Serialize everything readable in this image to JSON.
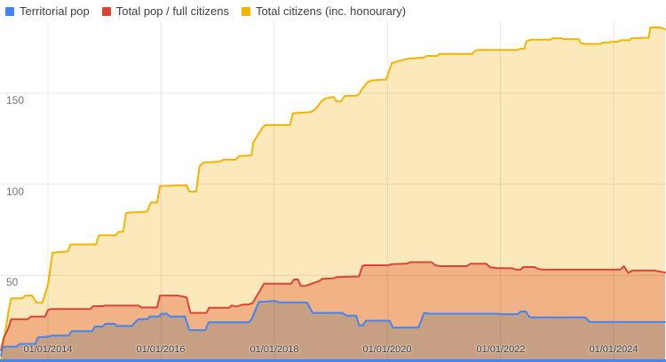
{
  "legend": {
    "items": [
      {
        "label": "Territorial pop",
        "color": "#4285F4"
      },
      {
        "label": "Total pop / full citizens",
        "color": "#DB4437"
      },
      {
        "label": "Total citizens (inc. honourary)",
        "color": "#F4B400"
      }
    ]
  },
  "footer": {
    "accent_color": "#4285F4"
  },
  "chart_data": {
    "type": "area",
    "title": "",
    "xlabel": "",
    "ylabel": "",
    "grid": true,
    "legend_position": "top",
    "x_axis": {
      "range_years": [
        2013.17,
        2024.91
      ],
      "ticks": [
        {
          "label": "01/01/2014",
          "year": 2014
        },
        {
          "label": "01/01/2016",
          "year": 2016
        },
        {
          "label": "01/01/2018",
          "year": 2018
        },
        {
          "label": "01/01/2020",
          "year": 2020
        },
        {
          "label": "01/01/2022",
          "year": 2022
        },
        {
          "label": "01/01/2024",
          "year": 2024
        }
      ]
    },
    "y_axis": {
      "range": [
        0,
        200
      ],
      "ticks": [
        {
          "label": "50",
          "value": 50
        },
        {
          "label": "100",
          "value": 100
        },
        {
          "label": "150",
          "value": 150
        }
      ]
    },
    "series": [
      {
        "name": "Territorial pop",
        "line_color": "#4285F4",
        "fill_color": "#C7A083",
        "points": [
          [
            2013.17,
            6
          ],
          [
            2013.2,
            10.5
          ],
          [
            2013.24,
            11
          ],
          [
            2013.45,
            11
          ],
          [
            2013.5,
            12.5
          ],
          [
            2013.78,
            12.5
          ],
          [
            2013.82,
            16
          ],
          [
            2014.02,
            16.5
          ],
          [
            2014.06,
            17
          ],
          [
            2014.36,
            17
          ],
          [
            2014.42,
            19.5
          ],
          [
            2014.78,
            19.5
          ],
          [
            2014.83,
            22
          ],
          [
            2014.97,
            22
          ],
          [
            2015.01,
            23.5
          ],
          [
            2015.18,
            23.5
          ],
          [
            2015.22,
            22.3
          ],
          [
            2015.48,
            22.3
          ],
          [
            2015.55,
            24.5
          ],
          [
            2015.6,
            26
          ],
          [
            2015.76,
            26
          ],
          [
            2015.8,
            27.5
          ],
          [
            2015.96,
            27.5
          ],
          [
            2016.0,
            29
          ],
          [
            2016.1,
            29
          ],
          [
            2016.16,
            27.5
          ],
          [
            2016.42,
            27.5
          ],
          [
            2016.5,
            20
          ],
          [
            2016.78,
            20
          ],
          [
            2016.84,
            24.3
          ],
          [
            2017.55,
            24.3
          ],
          [
            2017.6,
            26
          ],
          [
            2017.73,
            35.5
          ],
          [
            2018.02,
            36
          ],
          [
            2018.1,
            35.2
          ],
          [
            2018.58,
            35.2
          ],
          [
            2018.68,
            29.5
          ],
          [
            2019.2,
            29.5
          ],
          [
            2019.28,
            28
          ],
          [
            2019.45,
            28
          ],
          [
            2019.5,
            22.7
          ],
          [
            2019.57,
            22.7
          ],
          [
            2019.62,
            25.2
          ],
          [
            2020.04,
            25.2
          ],
          [
            2020.1,
            21.4
          ],
          [
            2020.55,
            21.4
          ],
          [
            2020.65,
            29.5
          ],
          [
            2020.75,
            29
          ],
          [
            2021.95,
            29
          ],
          [
            2022.0,
            28.8
          ],
          [
            2022.3,
            28.8
          ],
          [
            2022.36,
            30.3
          ],
          [
            2022.45,
            30.3
          ],
          [
            2022.5,
            27.5
          ],
          [
            2022.55,
            27
          ],
          [
            2023.5,
            27
          ],
          [
            2023.58,
            24.5
          ],
          [
            2024.91,
            24.5
          ]
        ]
      },
      {
        "name": "Total pop / full citizens",
        "line_color": "#DB4437",
        "fill_color": "#F1B285",
        "points": [
          [
            2013.17,
            9
          ],
          [
            2013.22,
            16
          ],
          [
            2013.3,
            21
          ],
          [
            2013.35,
            26
          ],
          [
            2013.64,
            26
          ],
          [
            2013.7,
            27.5
          ],
          [
            2013.95,
            27.5
          ],
          [
            2014.0,
            31
          ],
          [
            2014.05,
            31.6
          ],
          [
            2014.75,
            31.6
          ],
          [
            2014.8,
            33.2
          ],
          [
            2014.97,
            33.2
          ],
          [
            2015.0,
            33.5
          ],
          [
            2015.6,
            33.5
          ],
          [
            2015.65,
            32.5
          ],
          [
            2015.93,
            32.5
          ],
          [
            2015.98,
            39
          ],
          [
            2016.3,
            39
          ],
          [
            2016.45,
            38
          ],
          [
            2016.52,
            29.5
          ],
          [
            2016.8,
            29.5
          ],
          [
            2016.85,
            32.3
          ],
          [
            2017.2,
            32.3
          ],
          [
            2017.25,
            33.6
          ],
          [
            2017.32,
            32.9
          ],
          [
            2017.45,
            34.1
          ],
          [
            2017.55,
            34.1
          ],
          [
            2017.62,
            35
          ],
          [
            2017.82,
            45.5
          ],
          [
            2018.3,
            45.5
          ],
          [
            2018.35,
            47.8
          ],
          [
            2018.42,
            47.8
          ],
          [
            2018.47,
            44.3
          ],
          [
            2018.55,
            44.3
          ],
          [
            2018.8,
            47
          ],
          [
            2018.85,
            48.2
          ],
          [
            2019.05,
            48.5
          ],
          [
            2019.1,
            49.1
          ],
          [
            2019.5,
            49.5
          ],
          [
            2019.56,
            55.3
          ],
          [
            2019.6,
            55.6
          ],
          [
            2020.02,
            55.6
          ],
          [
            2020.08,
            56.2
          ],
          [
            2020.35,
            56.5
          ],
          [
            2020.4,
            57.3
          ],
          [
            2020.78,
            57.3
          ],
          [
            2020.85,
            55.6
          ],
          [
            2020.93,
            55.1
          ],
          [
            2021.4,
            55.1
          ],
          [
            2021.47,
            56.4
          ],
          [
            2021.75,
            56.4
          ],
          [
            2021.82,
            54.5
          ],
          [
            2021.95,
            54
          ],
          [
            2022.2,
            54
          ],
          [
            2022.28,
            53.2
          ],
          [
            2022.36,
            53.2
          ],
          [
            2022.4,
            54.6
          ],
          [
            2022.6,
            54.6
          ],
          [
            2022.68,
            53.5
          ],
          [
            2022.75,
            53.2
          ],
          [
            2024.12,
            53.2
          ],
          [
            2024.18,
            55.1
          ],
          [
            2024.26,
            51.4
          ],
          [
            2024.33,
            52.7
          ],
          [
            2024.72,
            52.7
          ],
          [
            2024.91,
            51.6
          ]
        ]
      },
      {
        "name": "Total citizens (inc. honourary)",
        "line_color": "#F4B400",
        "fill_color": "#FBE9BC",
        "points": [
          [
            2013.17,
            3
          ],
          [
            2013.22,
            14
          ],
          [
            2013.3,
            30
          ],
          [
            2013.35,
            37.5
          ],
          [
            2013.55,
            37.5
          ],
          [
            2013.6,
            39
          ],
          [
            2013.72,
            39
          ],
          [
            2013.8,
            35
          ],
          [
            2013.9,
            35
          ],
          [
            2014.0,
            45
          ],
          [
            2014.08,
            62.5
          ],
          [
            2014.35,
            63.2
          ],
          [
            2014.4,
            67
          ],
          [
            2014.85,
            67
          ],
          [
            2014.9,
            72
          ],
          [
            2015.2,
            72
          ],
          [
            2015.25,
            74
          ],
          [
            2015.33,
            74
          ],
          [
            2015.38,
            84
          ],
          [
            2015.42,
            84.5
          ],
          [
            2015.75,
            85
          ],
          [
            2015.82,
            90
          ],
          [
            2015.93,
            90
          ],
          [
            2015.98,
            99
          ],
          [
            2016.45,
            99.5
          ],
          [
            2016.5,
            96
          ],
          [
            2016.62,
            96
          ],
          [
            2016.68,
            110
          ],
          [
            2016.75,
            112
          ],
          [
            2017.05,
            112.5
          ],
          [
            2017.1,
            113.5
          ],
          [
            2017.32,
            113.5
          ],
          [
            2017.38,
            115.5
          ],
          [
            2017.55,
            115.8
          ],
          [
            2017.6,
            116
          ],
          [
            2017.63,
            123
          ],
          [
            2017.8,
            131.5
          ],
          [
            2017.85,
            132.5
          ],
          [
            2018.28,
            132.5
          ],
          [
            2018.33,
            139
          ],
          [
            2018.62,
            139.5
          ],
          [
            2018.67,
            140
          ],
          [
            2018.72,
            141
          ],
          [
            2018.85,
            146
          ],
          [
            2018.9,
            147
          ],
          [
            2019.05,
            148
          ],
          [
            2019.1,
            145.5
          ],
          [
            2019.18,
            145.5
          ],
          [
            2019.25,
            148.5
          ],
          [
            2019.45,
            148.5
          ],
          [
            2019.5,
            149.5
          ],
          [
            2019.55,
            152
          ],
          [
            2019.65,
            156
          ],
          [
            2019.72,
            157
          ],
          [
            2019.98,
            157.5
          ],
          [
            2020.03,
            162
          ],
          [
            2020.08,
            166.5
          ],
          [
            2020.2,
            167.6
          ],
          [
            2020.35,
            168.8
          ],
          [
            2020.65,
            169.6
          ],
          [
            2020.7,
            170.4
          ],
          [
            2020.88,
            170.4
          ],
          [
            2020.92,
            171.5
          ],
          [
            2021.5,
            171.5
          ],
          [
            2021.55,
            173.2
          ],
          [
            2021.62,
            173.7
          ],
          [
            2022.3,
            173.7
          ],
          [
            2022.35,
            174.3
          ],
          [
            2022.42,
            174.3
          ],
          [
            2022.46,
            178.5
          ],
          [
            2022.54,
            179.3
          ],
          [
            2022.88,
            179.3
          ],
          [
            2022.92,
            180.1
          ],
          [
            2023.08,
            180.1
          ],
          [
            2023.12,
            179.6
          ],
          [
            2023.38,
            179.6
          ],
          [
            2023.42,
            177.4
          ],
          [
            2023.5,
            177
          ],
          [
            2023.77,
            177
          ],
          [
            2023.8,
            177.7
          ],
          [
            2023.92,
            177.7
          ],
          [
            2023.95,
            178.2
          ],
          [
            2024.08,
            178.2
          ],
          [
            2024.12,
            179
          ],
          [
            2024.28,
            179
          ],
          [
            2024.32,
            180.1
          ],
          [
            2024.45,
            180.2
          ],
          [
            2024.62,
            180.4
          ],
          [
            2024.65,
            186
          ],
          [
            2024.83,
            186
          ],
          [
            2024.91,
            185
          ]
        ]
      }
    ]
  }
}
